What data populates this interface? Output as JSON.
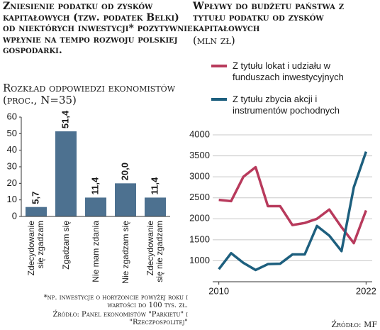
{
  "chart_data": [
    {
      "type": "bar",
      "title": "Zniesienie podatku od zysków kapitałowych (tzw. podatek Belki) od niektórych inwestycji* pozytywnie wpłynie na tempo rozwoju polskiej gospodarki.",
      "subtitle": "Rozkład odpowiedzi ekonomistów (proc., N=35)",
      "categories": [
        "Zdecydowanie się zgadzam",
        "Zgadzam się",
        "Nie mam zdania",
        "Nie zgadzam się",
        "Zdecydowanie się nie zgadzam"
      ],
      "values": [
        5.7,
        51.4,
        11.4,
        20.0,
        11.4
      ],
      "value_labels": [
        "5,7",
        "51,4",
        "11,4",
        "20,0",
        "11,4"
      ],
      "color": "#4d7190",
      "ylim": [
        0,
        60
      ],
      "yticks": [
        0,
        10,
        20,
        30,
        40,
        50,
        60
      ],
      "note": "*np. inwestycje o horyzoncie powyżej roku i wartości do 100 tys. zł.",
      "source": "Źródło: Panel ekonomistów \"Parkietu\" i \"Rzeczpospolitej\""
    },
    {
      "type": "line",
      "title": "Wpływy do budżetu państwa z tytułu podatku od zysków kapitałowych",
      "subtitle": "(mln zł)",
      "x": [
        2010,
        2011,
        2012,
        2013,
        2014,
        2015,
        2016,
        2017,
        2018,
        2019,
        2020,
        2021,
        2022
      ],
      "series": [
        {
          "name": "Z tytułu lokat i udziału w funduszach inwestycyjnych",
          "color": "#b83a5c",
          "values": [
            2450,
            2420,
            3000,
            3230,
            2300,
            2300,
            1850,
            1900,
            2000,
            2220,
            1800,
            1420,
            2200
          ]
        },
        {
          "name": "Z tytułu zbycia akcji i instrumentów pochodnych",
          "color": "#1d5f7e",
          "values": [
            800,
            1180,
            950,
            780,
            920,
            930,
            1150,
            1150,
            1830,
            1600,
            1230,
            2750,
            3600
          ]
        }
      ],
      "xlim": [
        2009.5,
        2022.5
      ],
      "xticks": [
        2010,
        2022
      ],
      "ylim": [
        500,
        4000
      ],
      "yticks": [
        1000,
        1500,
        2000,
        2500,
        3000,
        3500,
        4000
      ],
      "grid": true,
      "legend": "top",
      "source": "Źródło: MF"
    }
  ]
}
